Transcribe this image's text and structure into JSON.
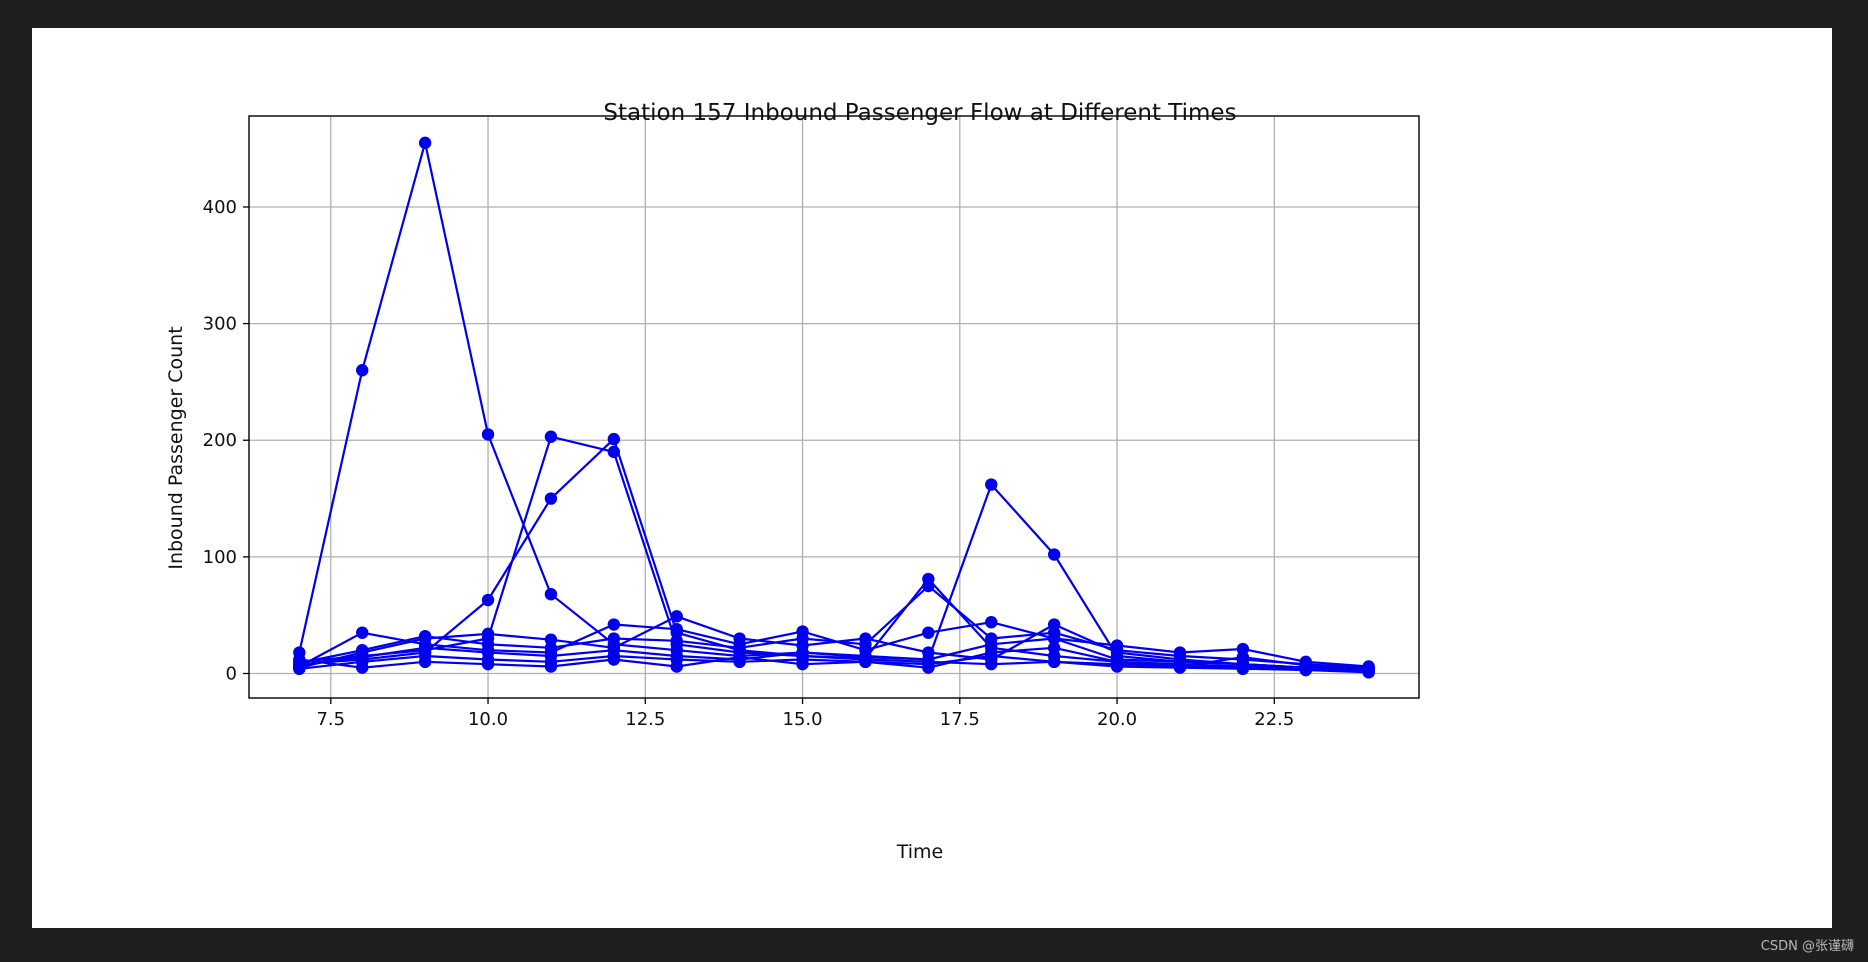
{
  "watermark": "CSDN @张谨礴",
  "chart_data": {
    "type": "line",
    "title": "Station 157 Inbound Passenger Flow at Different Times",
    "xlabel": "Time",
    "ylabel": "Inbound Passenger Count",
    "xlim": [
      6.2,
      24.8
    ],
    "ylim": [
      -21,
      478
    ],
    "xticks": [
      7.5,
      10.0,
      12.5,
      15.0,
      17.5,
      20.0,
      22.5
    ],
    "xtick_labels": [
      "7.5",
      "10.0",
      "12.5",
      "15.0",
      "17.5",
      "20.0",
      "22.5"
    ],
    "yticks": [
      0,
      100,
      200,
      300,
      400
    ],
    "ytick_labels": [
      "0",
      "100",
      "200",
      "300",
      "400"
    ],
    "grid": true,
    "legend": "none",
    "colors": {
      "line": "#0000ee",
      "grid": "#b0b0b0",
      "axes": "#000000"
    },
    "series": [
      {
        "x": [
          7,
          8,
          9,
          10,
          11,
          12,
          13,
          14,
          15,
          16,
          17,
          18,
          19,
          20,
          21,
          22,
          23,
          24
        ],
        "y": [
          18,
          260,
          455,
          205,
          68,
          25,
          20,
          15,
          18,
          14,
          12,
          162,
          102,
          15,
          10,
          8,
          5,
          3
        ]
      },
      {
        "x": [
          7,
          8,
          9,
          10,
          11,
          12,
          13,
          14,
          15,
          16,
          17,
          18,
          19,
          20,
          21,
          22,
          23,
          24
        ],
        "y": [
          10,
          15,
          20,
          30,
          203,
          190,
          25,
          18,
          15,
          12,
          10,
          8,
          10,
          6,
          5,
          4,
          3,
          2
        ]
      },
      {
        "x": [
          7,
          8,
          9,
          10,
          11,
          12,
          13,
          14,
          15,
          16,
          17,
          18,
          19,
          20,
          21,
          22,
          23,
          24
        ],
        "y": [
          8,
          12,
          18,
          63,
          150,
          201,
          35,
          20,
          15,
          13,
          81,
          22,
          15,
          10,
          8,
          6,
          4,
          3
        ]
      },
      {
        "x": [
          7,
          8,
          9,
          10,
          11,
          12,
          13,
          14,
          15,
          16,
          17,
          18,
          19,
          20,
          21,
          22,
          23,
          24
        ],
        "y": [
          6,
          35,
          25,
          20,
          18,
          42,
          38,
          25,
          36,
          20,
          35,
          44,
          30,
          24,
          18,
          21,
          10,
          6
        ]
      },
      {
        "x": [
          7,
          8,
          9,
          10,
          11,
          12,
          13,
          14,
          15,
          16,
          17,
          18,
          19,
          20,
          21,
          22,
          23,
          24
        ],
        "y": [
          5,
          18,
          30,
          34,
          29,
          22,
          49,
          30,
          24,
          30,
          18,
          12,
          42,
          18,
          12,
          8,
          5,
          4
        ]
      },
      {
        "x": [
          7,
          8,
          9,
          10,
          11,
          12,
          13,
          14,
          15,
          16,
          17,
          18,
          19,
          20,
          21,
          22,
          23,
          24
        ],
        "y": [
          9,
          20,
          32,
          25,
          22,
          30,
          28,
          22,
          30,
          25,
          75,
          30,
          35,
          20,
          15,
          12,
          8,
          5
        ]
      },
      {
        "x": [
          7,
          8,
          9,
          10,
          11,
          12,
          13,
          14,
          15,
          16,
          17,
          18,
          19,
          20,
          21,
          22,
          23,
          24
        ],
        "y": [
          4,
          10,
          15,
          12,
          10,
          15,
          12,
          10,
          12,
          10,
          8,
          15,
          10,
          8,
          6,
          5,
          3,
          1
        ]
      },
      {
        "x": [
          7,
          8,
          9,
          10,
          11,
          12,
          13,
          14,
          15,
          16,
          17,
          18,
          19,
          20,
          21,
          22,
          23,
          24
        ],
        "y": [
          7,
          14,
          22,
          18,
          15,
          20,
          15,
          12,
          18,
          15,
          12,
          25,
          30,
          12,
          10,
          8,
          5,
          4
        ]
      },
      {
        "x": [
          7,
          8,
          9,
          10,
          11,
          12,
          13,
          14,
          15,
          16,
          17,
          18,
          19,
          20,
          21,
          22,
          23,
          24
        ],
        "y": [
          12,
          5,
          10,
          8,
          6,
          12,
          6,
          14,
          8,
          10,
          5,
          18,
          22,
          10,
          6,
          14,
          7,
          3
        ]
      }
    ]
  }
}
